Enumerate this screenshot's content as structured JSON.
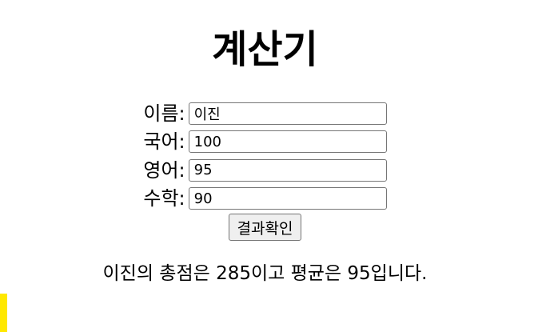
{
  "page": {
    "title": "계산기"
  },
  "form": {
    "fields": [
      {
        "label": "이름:",
        "value": "이진"
      },
      {
        "label": "국어:",
        "value": "100"
      },
      {
        "label": "영어:",
        "value": "95"
      },
      {
        "label": "수학:",
        "value": "90"
      }
    ],
    "submit_label": "결과확인"
  },
  "result": {
    "text": "이진의 총점은 285이고 평균은 95입니다."
  },
  "colors": {
    "accent_tab": "#ffe800"
  }
}
